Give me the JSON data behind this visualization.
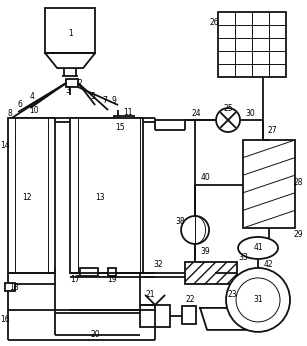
{
  "bg_color": "#ffffff",
  "line_color": "#111111",
  "figsize": [
    3.07,
    3.46
  ],
  "dpi": 100,
  "lw_main": 1.3,
  "lw_thin": 0.7,
  "lw_pipe": 1.0
}
